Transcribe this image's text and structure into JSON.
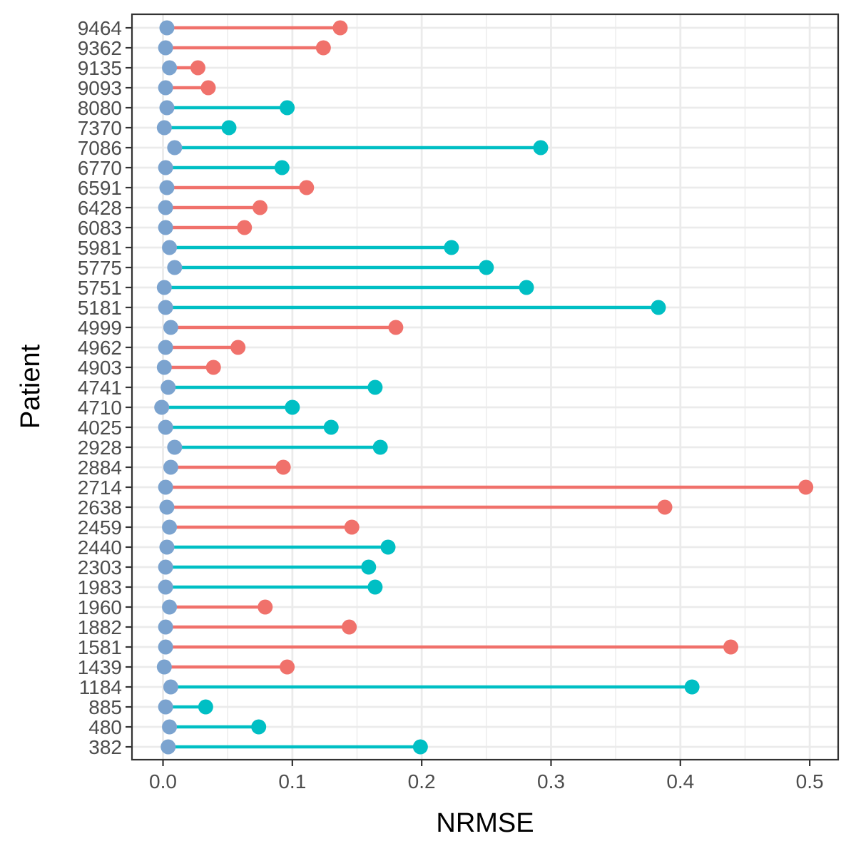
{
  "chart_data": {
    "type": "lollipop",
    "xlabel": "NRMSE",
    "ylabel": "Patient",
    "xlim": [
      -0.024,
      0.522
    ],
    "x_ticks": [
      0.0,
      0.1,
      0.2,
      0.3,
      0.4,
      0.5
    ],
    "x_tick_labels": [
      "0.0",
      "0.1",
      "0.2",
      "0.3",
      "0.4",
      "0.5"
    ],
    "grid": true,
    "legend": "none",
    "colors": {
      "start_point": "#7ba3cf",
      "red_group": "#f0716b",
      "teal_group": "#00bfc4",
      "grid": "#ebebeb",
      "panel_border": "#333333"
    },
    "series": [
      {
        "patient": "9464",
        "start": 0.003,
        "end": 0.137,
        "group": "red_group"
      },
      {
        "patient": "9362",
        "start": 0.002,
        "end": 0.124,
        "group": "red_group"
      },
      {
        "patient": "9135",
        "start": 0.005,
        "end": 0.027,
        "group": "red_group"
      },
      {
        "patient": "9093",
        "start": 0.002,
        "end": 0.035,
        "group": "red_group"
      },
      {
        "patient": "8080",
        "start": 0.003,
        "end": 0.096,
        "group": "teal_group"
      },
      {
        "patient": "7370",
        "start": 0.001,
        "end": 0.051,
        "group": "teal_group"
      },
      {
        "patient": "7086",
        "start": 0.009,
        "end": 0.292,
        "group": "teal_group"
      },
      {
        "patient": "6770",
        "start": 0.002,
        "end": 0.092,
        "group": "teal_group"
      },
      {
        "patient": "6591",
        "start": 0.003,
        "end": 0.111,
        "group": "red_group"
      },
      {
        "patient": "6428",
        "start": 0.002,
        "end": 0.075,
        "group": "red_group"
      },
      {
        "patient": "6083",
        "start": 0.002,
        "end": 0.063,
        "group": "red_group"
      },
      {
        "patient": "5981",
        "start": 0.005,
        "end": 0.223,
        "group": "teal_group"
      },
      {
        "patient": "5775",
        "start": 0.009,
        "end": 0.25,
        "group": "teal_group"
      },
      {
        "patient": "5751",
        "start": 0.001,
        "end": 0.281,
        "group": "teal_group"
      },
      {
        "patient": "5181",
        "start": 0.002,
        "end": 0.383,
        "group": "teal_group"
      },
      {
        "patient": "4999",
        "start": 0.006,
        "end": 0.18,
        "group": "red_group"
      },
      {
        "patient": "4962",
        "start": 0.002,
        "end": 0.058,
        "group": "red_group"
      },
      {
        "patient": "4903",
        "start": 0.001,
        "end": 0.039,
        "group": "red_group"
      },
      {
        "patient": "4741",
        "start": 0.004,
        "end": 0.164,
        "group": "teal_group"
      },
      {
        "patient": "4710",
        "start": -0.001,
        "end": 0.1,
        "group": "teal_group"
      },
      {
        "patient": "4025",
        "start": 0.002,
        "end": 0.13,
        "group": "teal_group"
      },
      {
        "patient": "2928",
        "start": 0.009,
        "end": 0.168,
        "group": "teal_group"
      },
      {
        "patient": "2884",
        "start": 0.006,
        "end": 0.093,
        "group": "red_group"
      },
      {
        "patient": "2714",
        "start": 0.002,
        "end": 0.497,
        "group": "red_group"
      },
      {
        "patient": "2638",
        "start": 0.003,
        "end": 0.388,
        "group": "red_group"
      },
      {
        "patient": "2459",
        "start": 0.005,
        "end": 0.146,
        "group": "red_group"
      },
      {
        "patient": "2440",
        "start": 0.003,
        "end": 0.174,
        "group": "teal_group"
      },
      {
        "patient": "2303",
        "start": 0.002,
        "end": 0.159,
        "group": "teal_group"
      },
      {
        "patient": "1983",
        "start": 0.002,
        "end": 0.164,
        "group": "teal_group"
      },
      {
        "patient": "1960",
        "start": 0.005,
        "end": 0.079,
        "group": "red_group"
      },
      {
        "patient": "1882",
        "start": 0.002,
        "end": 0.144,
        "group": "red_group"
      },
      {
        "patient": "1581",
        "start": 0.002,
        "end": 0.439,
        "group": "red_group"
      },
      {
        "patient": "1439",
        "start": 0.001,
        "end": 0.096,
        "group": "red_group"
      },
      {
        "patient": "1184",
        "start": 0.006,
        "end": 0.409,
        "group": "teal_group"
      },
      {
        "patient": "885",
        "start": 0.002,
        "end": 0.033,
        "group": "teal_group"
      },
      {
        "patient": "480",
        "start": 0.005,
        "end": 0.074,
        "group": "teal_group"
      },
      {
        "patient": "382",
        "start": 0.004,
        "end": 0.199,
        "group": "teal_group"
      }
    ]
  }
}
